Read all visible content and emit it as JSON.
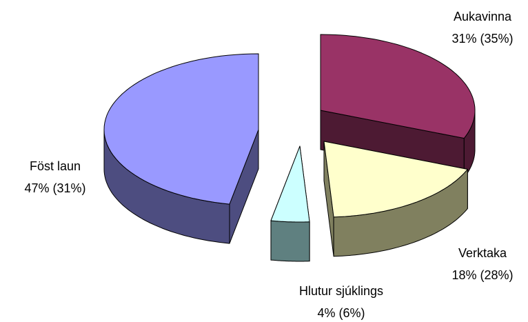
{
  "chart_data": {
    "type": "pie3d",
    "categories": [
      "Aukavinna",
      "Verktaka",
      "Hlutur sjúklings",
      "Föst laun"
    ],
    "values": [
      31,
      18,
      4,
      47
    ],
    "value_labels": [
      "31% (35%)",
      "18% (28%)",
      "4% (6%)",
      "47% (31%)"
    ],
    "colors": [
      "#993366",
      "#ffffcc",
      "#ccffff",
      "#9999ff"
    ],
    "side_colors": [
      "#4d1a33",
      "#80805f",
      "#5f8080",
      "#4d4d80"
    ]
  }
}
